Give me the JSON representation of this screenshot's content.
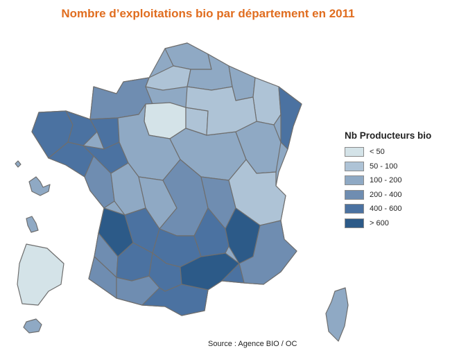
{
  "title": "Nombre d’exploitations bio par département en 2011",
  "legend": {
    "title": "Nb Producteurs bio",
    "items": [
      {
        "label": "< 50",
        "color": "#d4e3e8"
      },
      {
        "label": "50 - 100",
        "color": "#aec3d6"
      },
      {
        "label": "100 - 200",
        "color": "#8fa9c4"
      },
      {
        "label": "200 - 400",
        "color": "#6f8db1"
      },
      {
        "label": "400 - 600",
        "color": "#4b72a1"
      },
      {
        "label": "> 600",
        "color": "#2c5a88"
      }
    ]
  },
  "source": "Source : Agence BIO / OC"
}
